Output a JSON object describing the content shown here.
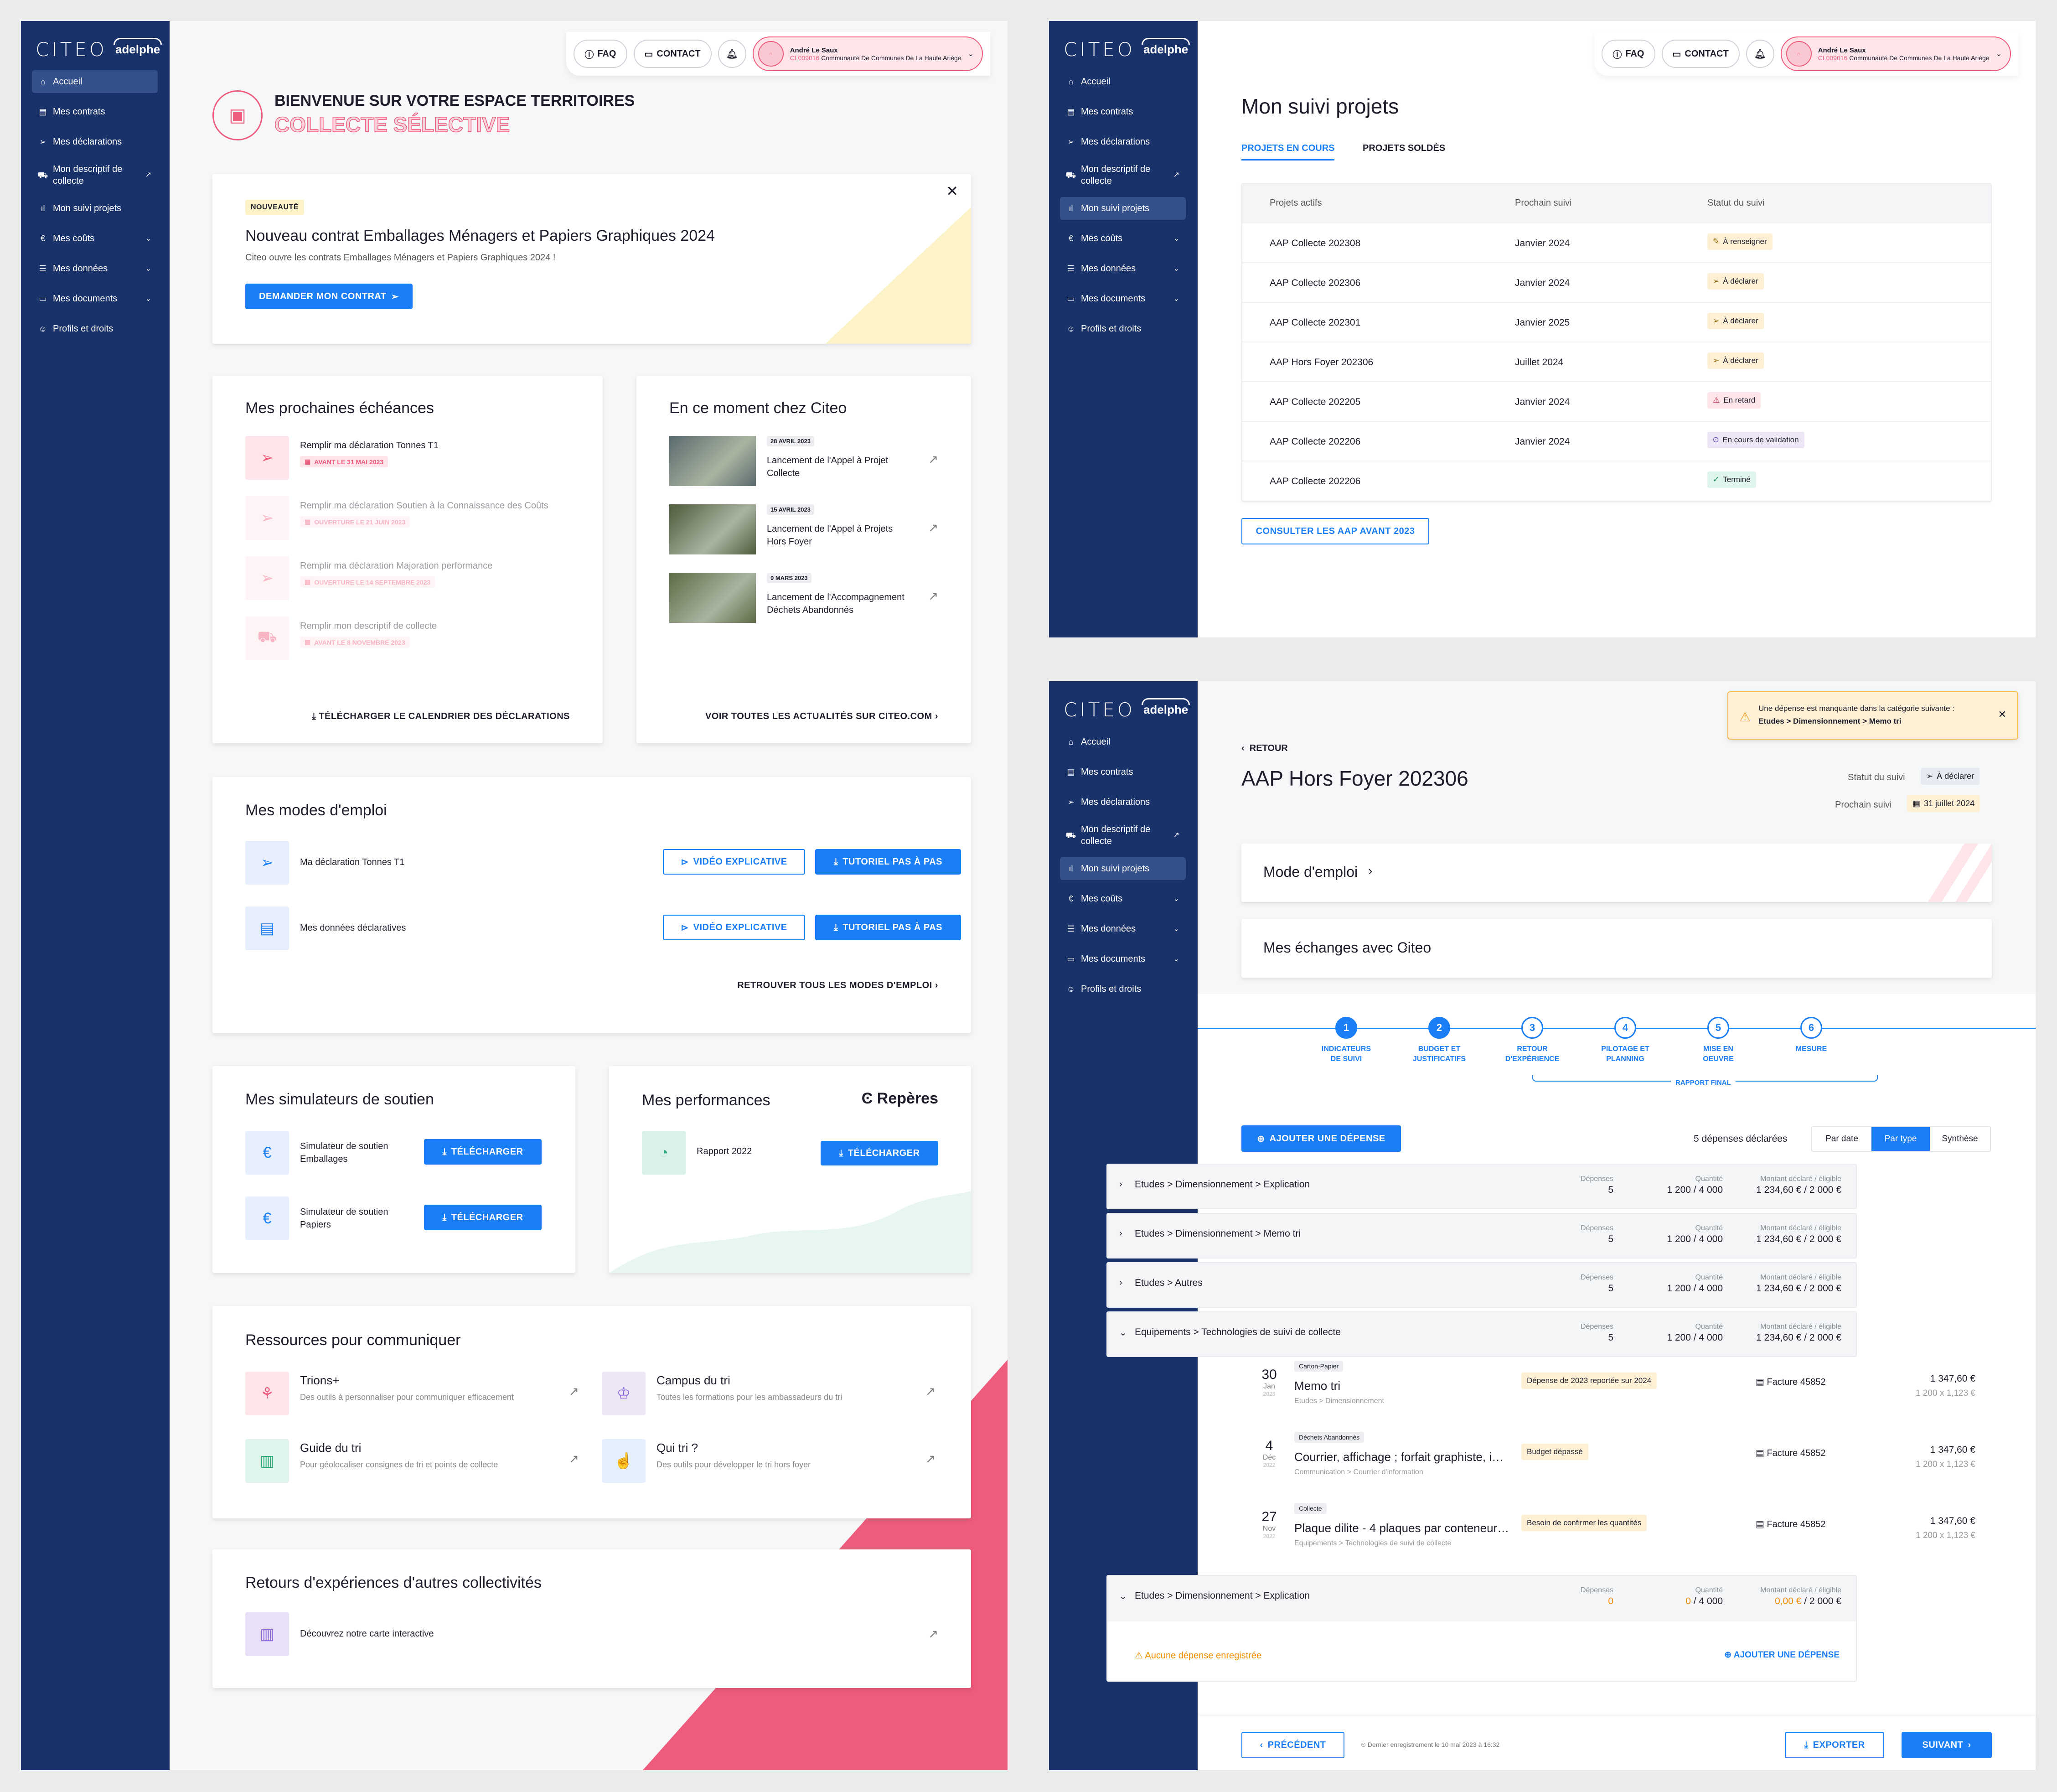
{
  "brand": {
    "citeo": "CITEO",
    "adelphe": "adelphe"
  },
  "nav": [
    {
      "label": "Accueil",
      "icon": "home-icon"
    },
    {
      "label": "Mes contrats",
      "icon": "document-icon"
    },
    {
      "label": "Mes déclarations",
      "icon": "send-icon"
    },
    {
      "label": "Mon descriptif de collecte",
      "icon": "truck-icon"
    },
    {
      "label": "Mon suivi projets",
      "icon": "bar-chart-icon"
    },
    {
      "label": "Mes coûts",
      "icon": "euro-icon"
    },
    {
      "label": "Mes données",
      "icon": "database-icon"
    },
    {
      "label": "Mes documents",
      "icon": "folder-icon"
    },
    {
      "label": "Profils et droits",
      "icon": "user-icon"
    }
  ],
  "topbar": {
    "faq": "FAQ",
    "contact": "CONTACT",
    "user_name": "André Le Saux",
    "user_id": "CL009016",
    "user_org": "Communauté De Communes De La Haute Ariège"
  },
  "home": {
    "welcome": "BIENVENUE SUR VOTRE ESPACE TERRITOIRES",
    "subtitle": "COLLECTE SÉLECTIVE",
    "banner": {
      "badge": "NOUVEAUTÉ",
      "title": "Nouveau contrat Emballages Ménagers et Papiers Graphiques 2024",
      "text": "Citeo ouvre les contrats Emballages Ménagers et Papiers Graphiques 2024 !",
      "cta": "DEMANDER MON CONTRAT"
    },
    "deadlines": {
      "title": "Mes prochaines échéances",
      "items": [
        {
          "label": "Remplir ma déclaration Tonnes T1",
          "date": "AVANT LE 31 MAI 2023"
        },
        {
          "label": "Remplir ma déclaration Soutien à la Connaissance des Coûts",
          "date": "OUVERTURE LE 21 JUIN 2023"
        },
        {
          "label": "Remplir ma déclaration Majoration performance",
          "date": "OUVERTURE LE 14 SEPTEMBRE 2023"
        },
        {
          "label": "Remplir mon descriptif de collecte",
          "date": "AVANT LE 8 NOVEMBRE 2023"
        }
      ],
      "link": "TÉLÉCHARGER LE CALENDRIER DES DÉCLARATIONS"
    },
    "news": {
      "title": "En ce moment chez Citeo",
      "items": [
        {
          "date": "28 AVRIL 2023",
          "label": "Lancement de l'Appel à Projet Collecte"
        },
        {
          "date": "15 AVRIL 2023",
          "label": "Lancement de l'Appel à Projets Hors Foyer"
        },
        {
          "date": "9 MARS 2023",
          "label": "Lancement de l'Accompagnement Déchets Abandonnés"
        }
      ],
      "link": "VOIR TOUTES LES ACTUALITÉS SUR CITEO.COM"
    },
    "modes": {
      "title": "Mes modes d'emploi",
      "items": [
        {
          "label": "Ma déclaration Tonnes T1"
        },
        {
          "label": "Mes données déclaratives"
        }
      ],
      "video": "VIDÉO EXPLICATIVE",
      "tuto": "TUTORIEL PAS À PAS",
      "link": "RETROUVER TOUS LES MODES D'EMPLOI"
    },
    "simulators": {
      "title": "Mes simulateurs de soutien",
      "items": [
        {
          "label": "Simulateur de soutien Emballages"
        },
        {
          "label": "Simulateur de soutien Papiers"
        }
      ],
      "btn": "TÉLÉCHARGER"
    },
    "perf": {
      "title": "Mes performances",
      "brand": "Repères",
      "item": "Rapport 2022",
      "btn": "TÉLÉCHARGER"
    },
    "resources": {
      "title": "Ressources pour communiquer",
      "items": [
        {
          "title": "Trions+",
          "text": "Des outils à personnaliser pour communiquer efficacement"
        },
        {
          "title": "Campus du tri",
          "text": "Toutes les formations pour les ambassadeurs du tri"
        },
        {
          "title": "Guide du tri",
          "text": "Pour géolocaliser consignes de tri et points de collecte"
        },
        {
          "title": "Qui tri ?",
          "text": "Des outils pour développer le tri hors foyer"
        }
      ]
    },
    "retours": {
      "title": "Retours d'expériences d'autres collectivités",
      "item": "Découvrez notre carte interactive"
    }
  },
  "projects": {
    "title": "Mon suivi projets",
    "tabs": [
      "PROJETS EN COURS",
      "PROJETS SOLDÉS"
    ],
    "columns": [
      "Projets actifs",
      "Prochain suivi",
      "Statut du suivi"
    ],
    "rows": [
      {
        "name": "AAP Collecte 202308",
        "next": "Janvier 2024",
        "status": "À renseigner",
        "kind": "warn"
      },
      {
        "name": "AAP Collecte 202306",
        "next": "Janvier 2024",
        "status": "À déclarer",
        "kind": "warn"
      },
      {
        "name": "AAP Collecte 202301",
        "next": "Janvier 2025",
        "status": "À déclarer",
        "kind": "warn"
      },
      {
        "name": "AAP Hors Foyer 202306",
        "next": "Juillet 2024",
        "status": "À déclarer",
        "kind": "warn"
      },
      {
        "name": "AAP Collecte 202205",
        "next": "Janvier 2024",
        "status": "En retard",
        "kind": "late"
      },
      {
        "name": "AAP Collecte 202206",
        "next": "Janvier 2024",
        "status": "En cours de validation",
        "kind": "valid"
      },
      {
        "name": "AAP Collecte 202206",
        "next": "",
        "status": "Terminé",
        "kind": "done"
      }
    ],
    "cta": "CONSULTER LES AAP AVANT 2023"
  },
  "detail": {
    "back": "RETOUR",
    "title": "AAP Hors Foyer 202306",
    "status_label": "Statut du suivi",
    "status": "À déclarer",
    "next_label": "Prochain suivi",
    "next": "31 juillet 2024",
    "alert_line1": "Une dépense est manquante dans la catégorie suivante :",
    "alert_line2": "Etudes > Dimensionnement > Memo tri",
    "mode": "Mode d'emploi",
    "exchanges": "Mes échanges avec Citeo",
    "steps": [
      {
        "n": "1",
        "label": "INDICATEURS DE SUIVI"
      },
      {
        "n": "2",
        "label": "BUDGET ET JUSTIFICATIFS"
      },
      {
        "n": "3",
        "label": "RETOUR D'EXPÉRIENCE"
      },
      {
        "n": "4",
        "label": "PILOTAGE ET PLANNING"
      },
      {
        "n": "5",
        "label": "MISE EN OEUVRE"
      },
      {
        "n": "6",
        "label": "MESURE"
      }
    ],
    "final": "RAPPORT FINAL",
    "add": "AJOUTER UNE DÉPENSE",
    "count": "5 dépenses déclarées",
    "filters": [
      "Par date",
      "Par type",
      "Synthèse"
    ],
    "col_dep": "Dépenses",
    "col_qty": "Quantité",
    "col_amt": "Montant déclaré / éligible",
    "categories": [
      {
        "name": "Etudes > Dimensionnement > Explication",
        "dep": "5",
        "qty": "1 200 / 4 000",
        "amt": "1 234,60 € / 2 000 €"
      },
      {
        "name": "Etudes > Dimensionnement > Memo tri",
        "dep": "5",
        "qty": "1 200 / 4 000",
        "amt": "1 234,60 € / 2 000 €"
      },
      {
        "name": "Etudes > Autres",
        "dep": "5",
        "qty": "1 200 / 4 000",
        "amt": "1 234,60 € / 2 000 €"
      },
      {
        "name": "Equipements > Technologies de suivi de collecte",
        "dep": "5",
        "qty": "1 200 / 4 000",
        "amt": "1 234,60 € / 2 000 €"
      }
    ],
    "expenses": [
      {
        "day": "30",
        "month": "Jan",
        "year": "2023",
        "tag": "Carton-Papier",
        "title": "Memo tri",
        "path": "Etudes > Dimensionnement",
        "note": "Dépense de 2023 reportée sur 2024",
        "invoice": "Facture 45852",
        "amount": "1 347,60 €",
        "calc": "1 200 x 1,123 €"
      },
      {
        "day": "4",
        "month": "Déc",
        "year": "2022",
        "tag": "Déchets Abandonnés",
        "title": "Courrier, affichage ; forfait graphiste, i…",
        "path": "Communication > Courrier d'information",
        "note": "Budget dépassé",
        "invoice": "Facture 45852",
        "amount": "1 347,60 €",
        "calc": "1 200 x 1,123 €"
      },
      {
        "day": "27",
        "month": "Nov",
        "year": "2022",
        "tag": "Collecte",
        "title": "Plaque dilite - 4 plaques par conteneur…",
        "path": "Equipements > Technologies de suivi de collecte",
        "note": "Besoin de confirmer les quantités",
        "invoice": "Facture 45852",
        "amount": "1 347,60 €",
        "calc": "1 200 x 1,123 €"
      }
    ],
    "last_cat": {
      "name": "Etudes > Dimensionnement > Explication",
      "dep": "0",
      "qty_a": "0",
      "qty_b": " / 4 000",
      "amt_a": "0,00 €",
      "amt_b": " / 2 000 €"
    },
    "no_expense": "Aucune dépense enregistrée",
    "prev": "PRÉCÉDENT",
    "saved": "Dernier enregistrement le 10 mai 2023 à 16:32",
    "export": "EXPORTER",
    "next_btn": "SUIVANT"
  },
  "colors": {
    "navy": "#19326a",
    "blue": "#1a7ef5",
    "pink": "#ee5b7c",
    "warn_bg": "#fdf0d5"
  }
}
